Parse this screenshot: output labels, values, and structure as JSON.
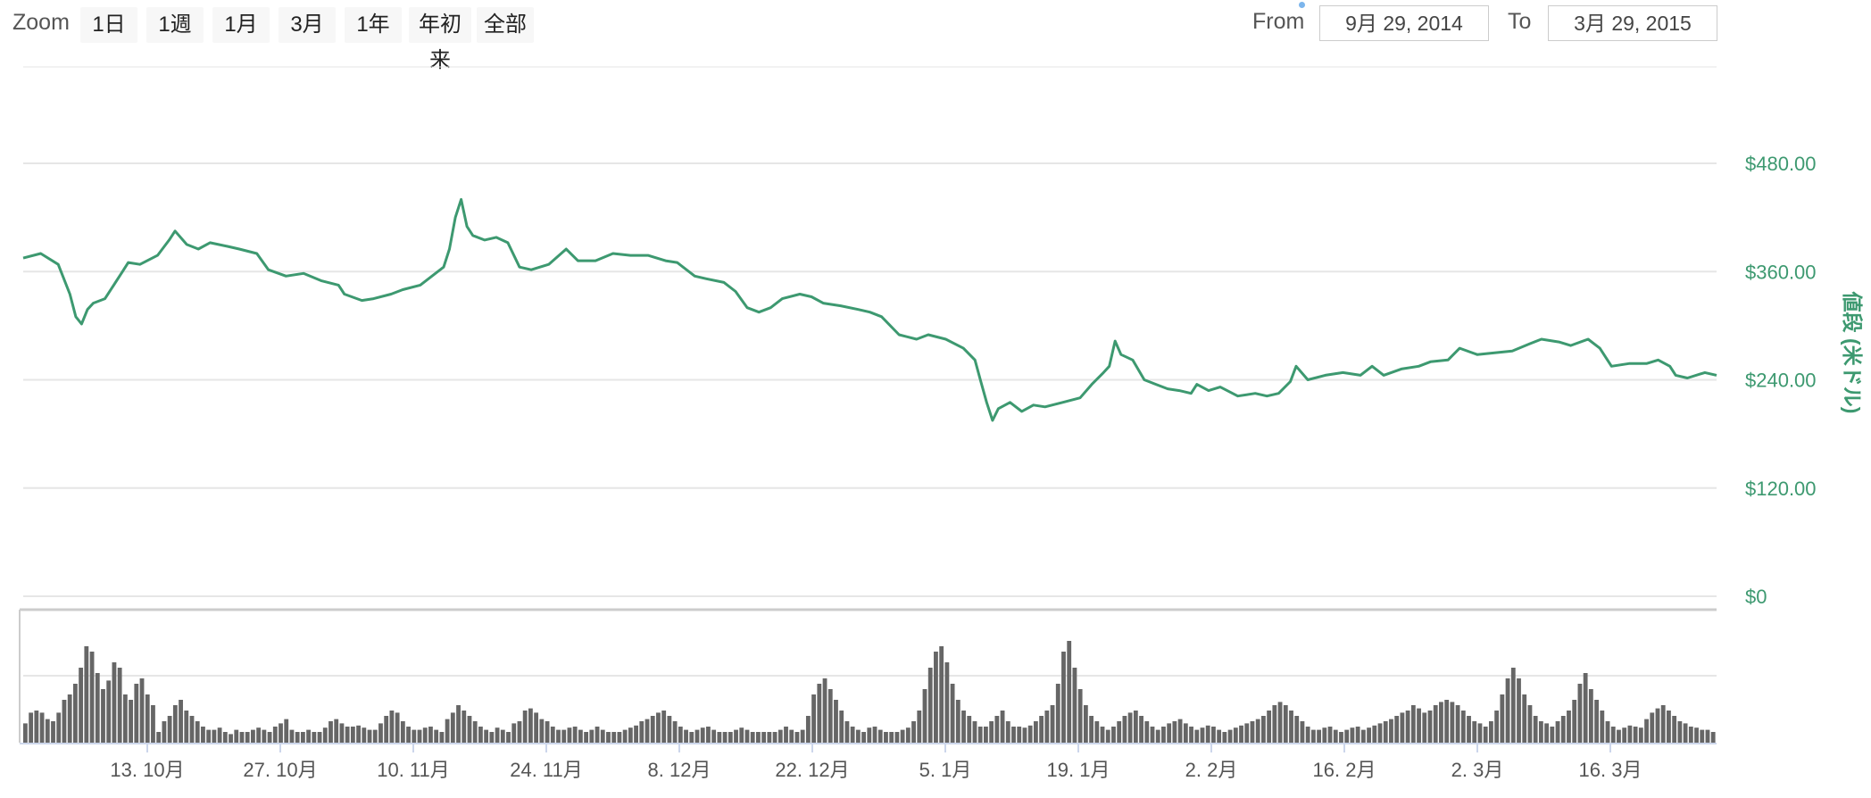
{
  "toolbar": {
    "zoom_label": "Zoom",
    "zoom_buttons": [
      "1日",
      "1週",
      "1月",
      "3月",
      "1年",
      "年初来",
      "全部"
    ],
    "from_label": "From",
    "from_value": "9月 29, 2014",
    "to_label": "To",
    "to_value": "3月 29, 2015"
  },
  "chart_data": {
    "type": "line",
    "title": "",
    "ylabel": "値段 (米ドル)",
    "ylim": [
      0,
      480
    ],
    "y_ticks": [
      "$0",
      "$120.00",
      "$240.00",
      "$360.00",
      "$480.00"
    ],
    "x_range": [
      "2014-09-29",
      "2015-03-29"
    ],
    "x_ticks": [
      "13. 10月",
      "27. 10月",
      "10. 11月",
      "24. 11月",
      "8. 12月",
      "22. 12月",
      "5. 1月",
      "19. 1月",
      "2. 2月",
      "16. 2月",
      "2. 3月",
      "16. 3月"
    ],
    "line_color": "#3d9970",
    "series": [
      {
        "values": [
          [
            0,
            375
          ],
          [
            3,
            380
          ],
          [
            6,
            368
          ],
          [
            8,
            335
          ],
          [
            9,
            310
          ],
          [
            10,
            302
          ],
          [
            11,
            318
          ],
          [
            12,
            325
          ],
          [
            14,
            330
          ],
          [
            17,
            360
          ],
          [
            18,
            370
          ],
          [
            20,
            368
          ],
          [
            23,
            378
          ],
          [
            25,
            395
          ],
          [
            26,
            405
          ],
          [
            28,
            390
          ],
          [
            30,
            385
          ],
          [
            32,
            392
          ],
          [
            35,
            388
          ],
          [
            37,
            385
          ],
          [
            40,
            380
          ],
          [
            42,
            362
          ],
          [
            45,
            355
          ],
          [
            48,
            358
          ],
          [
            51,
            350
          ],
          [
            54,
            345
          ],
          [
            55,
            335
          ],
          [
            58,
            328
          ],
          [
            60,
            330
          ],
          [
            63,
            335
          ],
          [
            65,
            340
          ],
          [
            68,
            345
          ],
          [
            70,
            355
          ],
          [
            72,
            365
          ],
          [
            73,
            385
          ],
          [
            74,
            420
          ],
          [
            75,
            440
          ],
          [
            76,
            410
          ],
          [
            77,
            400
          ],
          [
            79,
            395
          ],
          [
            81,
            398
          ],
          [
            83,
            392
          ],
          [
            85,
            365
          ],
          [
            87,
            362
          ],
          [
            90,
            368
          ],
          [
            93,
            385
          ],
          [
            95,
            372
          ],
          [
            98,
            372
          ],
          [
            101,
            380
          ],
          [
            104,
            378
          ],
          [
            107,
            378
          ],
          [
            110,
            372
          ],
          [
            112,
            370
          ],
          [
            115,
            355
          ],
          [
            117,
            352
          ],
          [
            120,
            348
          ],
          [
            122,
            338
          ],
          [
            124,
            320
          ],
          [
            126,
            315
          ],
          [
            128,
            320
          ],
          [
            130,
            330
          ],
          [
            133,
            335
          ],
          [
            135,
            332
          ],
          [
            137,
            325
          ],
          [
            140,
            322
          ],
          [
            143,
            318
          ],
          [
            145,
            315
          ],
          [
            147,
            310
          ],
          [
            150,
            290
          ],
          [
            153,
            285
          ],
          [
            155,
            290
          ],
          [
            158,
            285
          ],
          [
            161,
            275
          ],
          [
            163,
            262
          ],
          [
            164,
            238
          ],
          [
            165,
            215
          ],
          [
            166,
            195
          ],
          [
            167,
            208
          ],
          [
            169,
            215
          ],
          [
            171,
            205
          ],
          [
            173,
            212
          ],
          [
            175,
            210
          ],
          [
            178,
            215
          ],
          [
            181,
            220
          ],
          [
            183,
            235
          ],
          [
            185,
            248
          ],
          [
            186,
            255
          ],
          [
            187,
            283
          ],
          [
            188,
            268
          ],
          [
            190,
            262
          ],
          [
            192,
            240
          ],
          [
            194,
            235
          ],
          [
            196,
            230
          ],
          [
            198,
            228
          ],
          [
            200,
            225
          ],
          [
            201,
            235
          ],
          [
            203,
            228
          ],
          [
            205,
            232
          ],
          [
            208,
            222
          ],
          [
            211,
            225
          ],
          [
            213,
            222
          ],
          [
            215,
            225
          ],
          [
            217,
            238
          ],
          [
            218,
            255
          ],
          [
            220,
            240
          ],
          [
            223,
            245
          ],
          [
            226,
            248
          ],
          [
            229,
            245
          ],
          [
            231,
            255
          ],
          [
            233,
            245
          ],
          [
            236,
            252
          ],
          [
            239,
            255
          ],
          [
            241,
            260
          ],
          [
            244,
            262
          ],
          [
            246,
            275
          ],
          [
            249,
            268
          ],
          [
            252,
            270
          ],
          [
            255,
            272
          ],
          [
            258,
            280
          ],
          [
            260,
            285
          ],
          [
            263,
            282
          ],
          [
            265,
            278
          ],
          [
            268,
            285
          ],
          [
            270,
            275
          ],
          [
            272,
            255
          ],
          [
            275,
            258
          ],
          [
            278,
            258
          ],
          [
            280,
            262
          ],
          [
            282,
            255
          ],
          [
            283,
            245
          ],
          [
            285,
            242
          ],
          [
            288,
            248
          ],
          [
            290,
            245
          ]
        ]
      }
    ],
    "volume_values": [
      18,
      28,
      30,
      28,
      22,
      20,
      28,
      40,
      45,
      55,
      70,
      90,
      85,
      65,
      50,
      58,
      75,
      70,
      45,
      40,
      55,
      60,
      45,
      35,
      10,
      20,
      25,
      35,
      40,
      30,
      25,
      20,
      15,
      12,
      12,
      14,
      10,
      8,
      12,
      10,
      10,
      12,
      14,
      12,
      10,
      15,
      18,
      22,
      12,
      10,
      10,
      12,
      10,
      10,
      14,
      20,
      22,
      18,
      15,
      15,
      16,
      14,
      12,
      12,
      18,
      25,
      30,
      28,
      20,
      15,
      12,
      12,
      14,
      15,
      12,
      10,
      22,
      28,
      35,
      30,
      25,
      20,
      15,
      12,
      10,
      14,
      12,
      10,
      18,
      20,
      30,
      32,
      28,
      22,
      20,
      15,
      12,
      12,
      14,
      15,
      12,
      10,
      12,
      15,
      12,
      10,
      10,
      10,
      12,
      14,
      16,
      20,
      22,
      25,
      28,
      30,
      25,
      20,
      15,
      12,
      10,
      12,
      14,
      15,
      12,
      10,
      10,
      10,
      12,
      14,
      12,
      10,
      10,
      10,
      10,
      10,
      12,
      15,
      12,
      10,
      12,
      25,
      45,
      55,
      60,
      50,
      40,
      30,
      20,
      15,
      12,
      10,
      14,
      15,
      12,
      10,
      10,
      10,
      12,
      14,
      20,
      30,
      50,
      70,
      85,
      90,
      75,
      55,
      40,
      30,
      25,
      20,
      15,
      15,
      20,
      25,
      30,
      20,
      15,
      15,
      14,
      16,
      20,
      25,
      30,
      35,
      55,
      85,
      95,
      70,
      50,
      35,
      25,
      20,
      15,
      12,
      15,
      20,
      25,
      28,
      30,
      25,
      20,
      15,
      12,
      15,
      18,
      20,
      22,
      18,
      15,
      12,
      14,
      16,
      15,
      12,
      10,
      12,
      14,
      16,
      18,
      20,
      22,
      25,
      30,
      35,
      38,
      35,
      30,
      25,
      20,
      15,
      12,
      12,
      14,
      15,
      12,
      10,
      12,
      14,
      15,
      12,
      14,
      16,
      18,
      20,
      22,
      25,
      28,
      30,
      35,
      32,
      28,
      30,
      35,
      38,
      40,
      38,
      35,
      30,
      25,
      20,
      18,
      15,
      20,
      30,
      45,
      60,
      70,
      60,
      45,
      35,
      25,
      20,
      18,
      15,
      20,
      25,
      30,
      40,
      55,
      65,
      50,
      40,
      30,
      20,
      15,
      12,
      14,
      16,
      15,
      14,
      22,
      28,
      32,
      35,
      30,
      25,
      20,
      18,
      15,
      14,
      12,
      12,
      10
    ]
  }
}
